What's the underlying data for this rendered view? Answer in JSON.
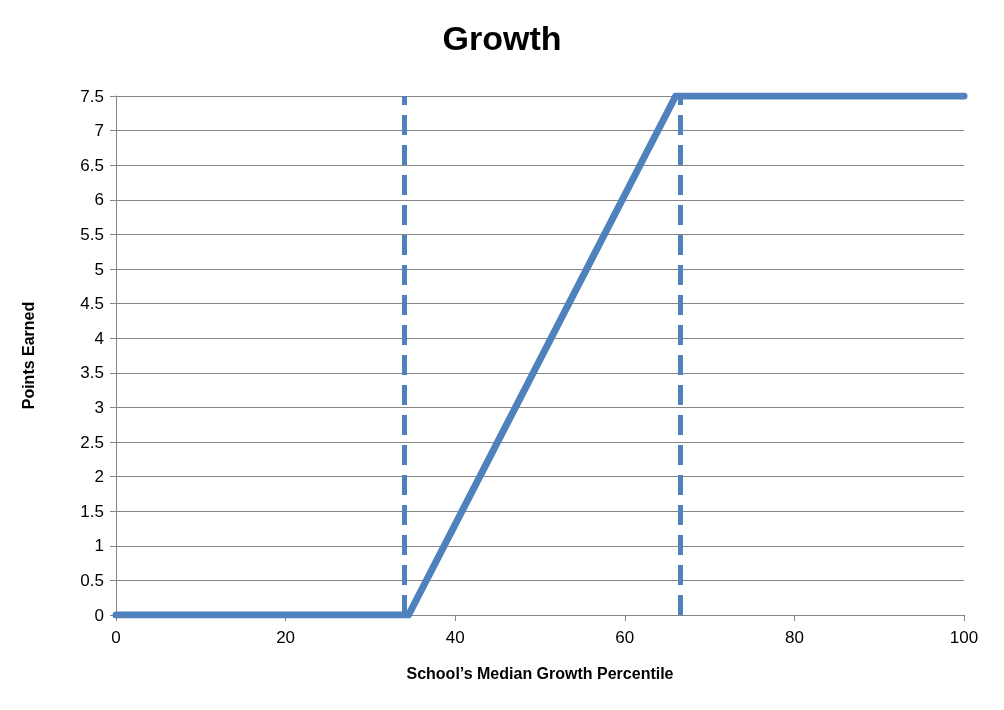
{
  "chart_data": {
    "type": "line",
    "title": "Growth",
    "xlabel": "School’s Median Growth Percentile",
    "ylabel": "Points Earned",
    "series": [
      {
        "color": "#4f81bd",
        "x": [
          0,
          34.5,
          66,
          100
        ],
        "values": [
          0,
          0,
          7.5,
          7.5
        ]
      }
    ],
    "xlim": [
      0,
      100
    ],
    "xticks": [
      0,
      20,
      40,
      60,
      80,
      100
    ],
    "ylim": [
      0,
      7.5
    ],
    "yticks": [
      0,
      0.5,
      1,
      1.5,
      2,
      2.5,
      3,
      3.5,
      4,
      4.5,
      5,
      5.5,
      6,
      6.5,
      7,
      7.5
    ],
    "ref_lines": [
      {
        "axis": "x",
        "value": 34,
        "color": "#4f81bd",
        "line_style": "dashed"
      },
      {
        "axis": "x",
        "value": 66.5,
        "color": "#4f81bd",
        "line_style": "dashed"
      }
    ],
    "grid": "y",
    "marker": "none",
    "line_style": "solid"
  }
}
